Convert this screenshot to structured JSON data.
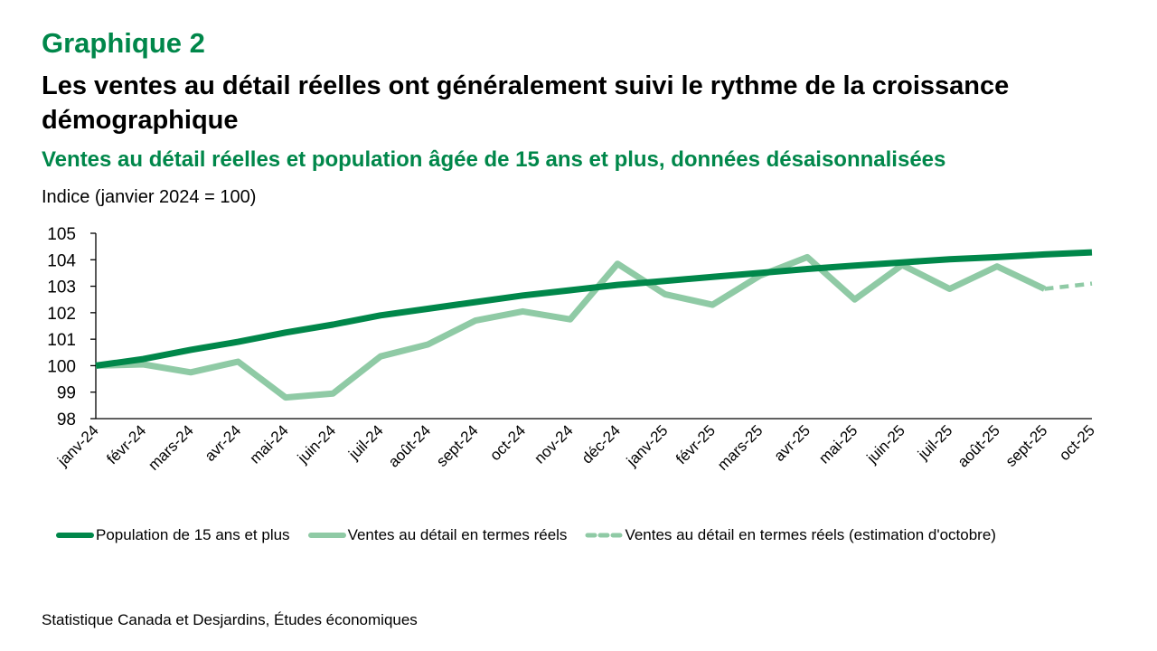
{
  "header": {
    "chart_number": "Graphique 2",
    "title": "Les ventes au détail réelles ont généralement suivi le rythme de la croissance démographique",
    "subtitle": "Ventes au détail réelles et population âgée de 15 ans et plus, données désaisonnalisées",
    "y_unit": "Indice (janvier 2024 = 100)"
  },
  "source": "Statistique Canada et Desjardins, Études économiques",
  "colors": {
    "title_green": "#00874a",
    "population": "#00874a",
    "sales": "#8fcaa5"
  },
  "chart_data": {
    "type": "line",
    "title": "Les ventes au détail réelles ont généralement suivi le rythme de la croissance démographique",
    "subtitle": "Ventes au détail réelles et population âgée de 15 ans et plus, données désaisonnalisées",
    "xlabel": "",
    "ylabel": "Indice (janvier 2024 = 100)",
    "ylim": [
      98,
      105
    ],
    "yticks": [
      98,
      99,
      100,
      101,
      102,
      103,
      104,
      105
    ],
    "grid": false,
    "legend_position": "bottom",
    "categories": [
      "janv-24",
      "févr-24",
      "mars-24",
      "avr-24",
      "mai-24",
      "juin-24",
      "juil-24",
      "août-24",
      "sept-24",
      "oct-24",
      "nov-24",
      "déc-24",
      "janv-25",
      "févr-25",
      "mars-25",
      "avr-25",
      "mai-25",
      "juin-25",
      "juil-25",
      "août-25",
      "sept-25",
      "oct-25"
    ],
    "series": [
      {
        "name": "Population de 15 ans et plus",
        "style": "solid-thick",
        "color": "#00874a",
        "values": [
          100.0,
          100.25,
          100.6,
          100.9,
          101.25,
          101.55,
          101.9,
          102.15,
          102.4,
          102.65,
          102.85,
          103.05,
          103.2,
          103.35,
          103.5,
          103.65,
          103.78,
          103.9,
          104.02,
          104.1,
          104.2,
          104.28
        ]
      },
      {
        "name": "Ventes au détail en termes réels",
        "style": "solid",
        "color": "#8fcaa5",
        "values": [
          100.0,
          100.05,
          99.75,
          100.15,
          98.8,
          98.95,
          100.35,
          100.8,
          101.7,
          102.05,
          101.75,
          103.85,
          102.7,
          102.3,
          103.4,
          104.1,
          102.5,
          103.8,
          102.9,
          103.75,
          102.9,
          null
        ]
      },
      {
        "name": "Ventes au détail en termes réels (estimation d'octobre)",
        "style": "dashed",
        "color": "#8fcaa5",
        "values": [
          null,
          null,
          null,
          null,
          null,
          null,
          null,
          null,
          null,
          null,
          null,
          null,
          null,
          null,
          null,
          null,
          null,
          null,
          null,
          null,
          102.9,
          103.1
        ]
      }
    ]
  }
}
